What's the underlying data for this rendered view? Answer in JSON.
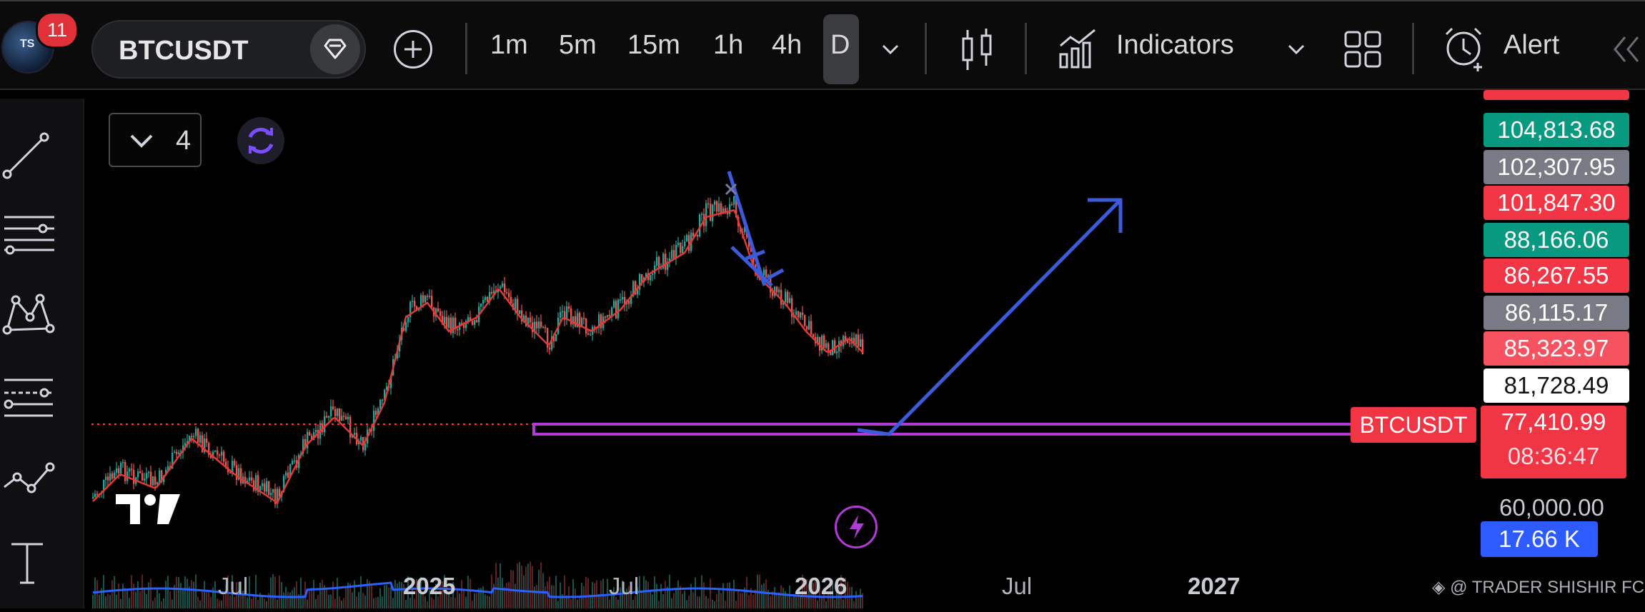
{
  "topbar": {
    "notification_count": "11",
    "avatar_text": "TS",
    "symbol": "BTCUSDT",
    "timeframes": [
      "1m",
      "5m",
      "15m",
      "1h",
      "4h",
      "D"
    ],
    "active_timeframe": "D",
    "indicators_label": "Indicators",
    "alert_label": "Alert"
  },
  "left_toolbar": {
    "tools": [
      "trend-line-icon",
      "horizontal-lines-icon",
      "pattern-icon",
      "fib-icon",
      "path-icon",
      "text-icon"
    ]
  },
  "chart": {
    "legend_count": "4",
    "symbol_tag": "BTCUSDT",
    "current_price": "77,410.99",
    "countdown": "08:36:47",
    "x_axis_labels": [
      {
        "text": "Jul",
        "bold": false
      },
      {
        "text": "2025",
        "bold": true
      },
      {
        "text": "Jul",
        "bold": false
      },
      {
        "text": "2026",
        "bold": true
      },
      {
        "text": "Jul",
        "bold": false
      },
      {
        "text": "2027",
        "bold": true
      }
    ],
    "price_tags": [
      {
        "value": "104,813.68",
        "color": "#089981"
      },
      {
        "value": "102,307.95",
        "color": "#787b86"
      },
      {
        "value": "101,847.30",
        "color": "#f23645"
      },
      {
        "value": "88,166.06",
        "color": "#089981"
      },
      {
        "value": "86,267.55",
        "color": "#f23645"
      },
      {
        "value": "86,115.17",
        "color": "#787b86"
      },
      {
        "value": "85,323.97",
        "color": "#f7525f"
      },
      {
        "value": "81,728.49",
        "color": "#ffffff"
      }
    ],
    "price_level": "60,000.00",
    "volume_value": "17.66 K",
    "watermark": "@ TRADER SHISHIR FCS",
    "colors": {
      "bull": "#26a69a",
      "bear": "#ef5350",
      "ma_line": "#e53935",
      "volume_line": "#2962ff",
      "drawing_blue": "#3b5bdb",
      "support_purple": "#b23ad6"
    }
  }
}
